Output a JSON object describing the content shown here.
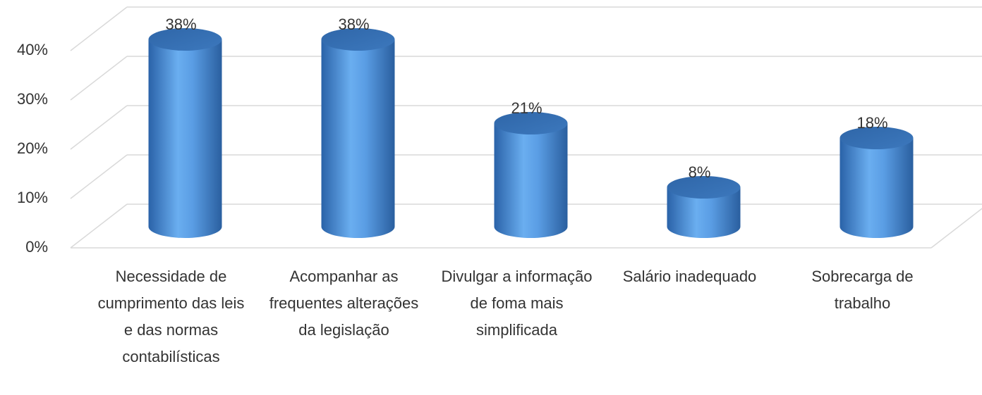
{
  "chart_data": {
    "type": "bar3d",
    "categories": [
      "Necessidade de cumprimento das leis e das normas contabilísticas",
      "Acompanhar as frequentes alterações da legislação",
      "Divulgar a informação de foma mais simplificada",
      "Salário inadequado",
      "Sobrecarga de trabalho"
    ],
    "values": [
      38,
      38,
      21,
      8,
      18
    ],
    "value_labels": [
      "38%",
      "38%",
      "21%",
      "8%",
      "18%"
    ],
    "color": "#4a8fd8",
    "ylim": [
      0,
      40
    ],
    "yticks": [
      {
        "value": 0,
        "label": "0%"
      },
      {
        "value": 10,
        "label": "10%"
      },
      {
        "value": 20,
        "label": "20%"
      },
      {
        "value": 30,
        "label": "30%"
      },
      {
        "value": 40,
        "label": "40%"
      }
    ],
    "grid": true
  }
}
